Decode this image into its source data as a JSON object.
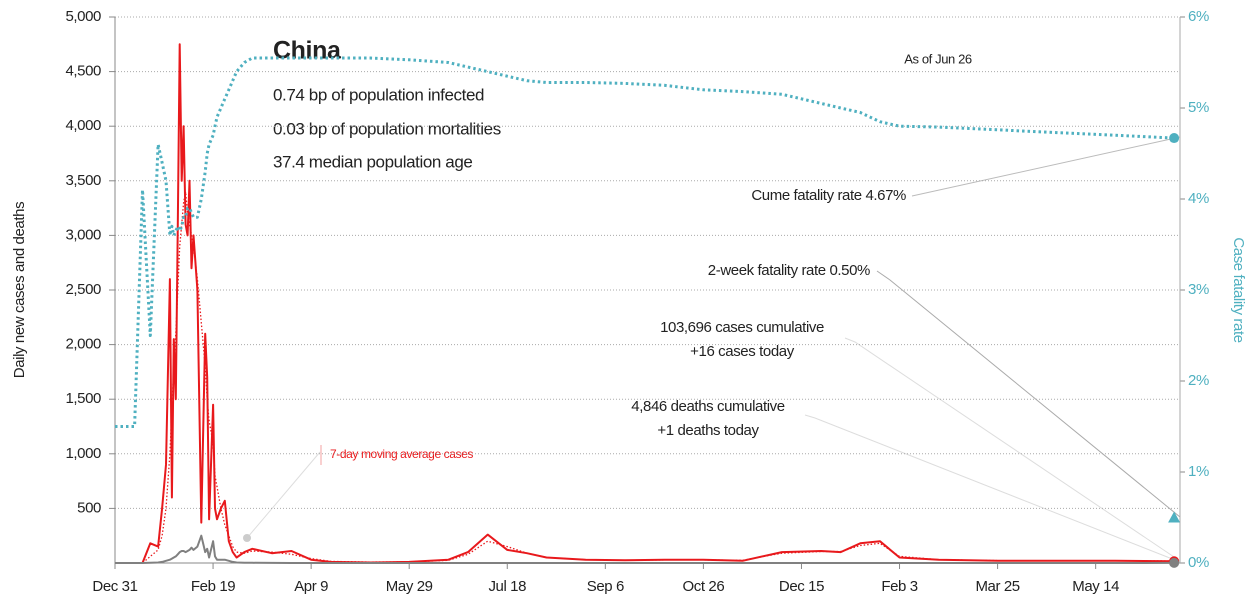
{
  "chart_data": {
    "type": "line",
    "title": "China",
    "subtitle_lines": [
      "0.74 bp of population infected",
      "0.03 bp of population mortalities",
      "37.4 median population age"
    ],
    "note": "As of Jun 26",
    "y_axis_label": "Daily new cases and deaths",
    "y2_axis_label": "Case fatality rate",
    "annotations": [
      "Cume fatality rate 4.67%",
      "2-week fatality rate 0.50%",
      "103,696 cases cumulative",
      "+16 cases today",
      "4,846 deaths cumulative",
      "+1 deaths today",
      "7-day moving average cases"
    ],
    "two_week_fatality_rate": 0.5,
    "x": [
      0,
      10,
      14,
      18,
      22,
      24,
      26,
      28,
      29,
      30,
      31,
      32,
      33,
      34,
      35,
      36,
      37,
      38,
      39,
      40,
      42,
      44,
      46,
      47,
      48,
      50,
      51,
      52,
      54,
      56,
      58,
      60,
      62,
      66,
      70,
      80,
      90,
      100,
      110,
      130,
      150,
      170,
      180,
      190,
      200,
      210,
      220,
      240,
      260,
      280,
      300,
      320,
      340,
      360,
      370,
      380,
      390,
      400,
      420,
      450,
      480,
      510,
      540
    ],
    "xlim": [
      0,
      543
    ],
    "xticks": [
      {
        "value": 0,
        "label": "Dec 31"
      },
      {
        "value": 50,
        "label": "Feb 19"
      },
      {
        "value": 100,
        "label": "Apr 9"
      },
      {
        "value": 150,
        "label": "May 29"
      },
      {
        "value": 200,
        "label": "Jul 18"
      },
      {
        "value": 250,
        "label": "Sep 6"
      },
      {
        "value": 300,
        "label": "Oct 26"
      },
      {
        "value": 350,
        "label": "Dec 15"
      },
      {
        "value": 400,
        "label": "Feb 3"
      },
      {
        "value": 450,
        "label": "Mar 25"
      },
      {
        "value": 500,
        "label": "May 14"
      }
    ],
    "ylim": [
      0,
      5000
    ],
    "yticks": [
      {
        "value": 500,
        "label": "500"
      },
      {
        "value": 1000,
        "label": "1,000"
      },
      {
        "value": 1500,
        "label": "1,500"
      },
      {
        "value": 2000,
        "label": "2,000"
      },
      {
        "value": 2500,
        "label": "2,500"
      },
      {
        "value": 3000,
        "label": "3,000"
      },
      {
        "value": 3500,
        "label": "3,500"
      },
      {
        "value": 4000,
        "label": "4,000"
      },
      {
        "value": 4500,
        "label": "4,500"
      },
      {
        "value": 5000,
        "label": "5,000"
      }
    ],
    "y2lim": [
      0,
      6
    ],
    "y2ticks": [
      {
        "value": 0,
        "label": "0%"
      },
      {
        "value": 1,
        "label": "1%"
      },
      {
        "value": 2,
        "label": "2%"
      },
      {
        "value": 3,
        "label": "3%"
      },
      {
        "value": 4,
        "label": "4%"
      },
      {
        "value": 5,
        "label": "5%"
      },
      {
        "value": 6,
        "label": "6%"
      }
    ],
    "grid": true,
    "series": [
      {
        "color": "#e8191c",
        "style": "solid",
        "values": [
          0,
          0,
          0,
          180,
          150,
          500,
          900,
          2600,
          600,
          2050,
          1500,
          3100,
          4750,
          3500,
          4000,
          3100,
          3000,
          3500,
          2700,
          3000,
          2500,
          370,
          2100,
          1700,
          400,
          1450,
          500,
          400,
          500,
          570,
          200,
          100,
          50,
          100,
          130,
          90,
          110,
          30,
          10,
          5,
          10,
          30,
          100,
          260,
          120,
          90,
          50,
          30,
          25,
          30,
          30,
          20,
          100,
          110,
          100,
          180,
          200,
          50,
          30,
          20,
          20,
          20,
          16
        ]
      },
      {
        "color": "#e8191c",
        "style": "dotted",
        "values": [
          0,
          0,
          0,
          60,
          120,
          250,
          500,
          1000,
          1400,
          1800,
          2100,
          2500,
          2900,
          3100,
          3300,
          3400,
          3200,
          3100,
          3000,
          2900,
          2600,
          2200,
          1800,
          1500,
          1300,
          1100,
          800,
          700,
          500,
          350,
          250,
          150,
          100,
          90,
          110,
          100,
          80,
          40,
          15,
          8,
          10,
          25,
          80,
          200,
          150,
          90,
          50,
          30,
          25,
          28,
          28,
          25,
          90,
          105,
          105,
          160,
          180,
          60,
          30,
          22,
          20,
          20,
          18
        ]
      },
      {
        "color": "#808080",
        "style": "solid",
        "values": [
          0,
          0,
          0,
          3,
          5,
          10,
          20,
          30,
          40,
          50,
          60,
          80,
          100,
          110,
          110,
          100,
          110,
          120,
          140,
          120,
          150,
          250,
          100,
          130,
          50,
          200,
          60,
          30,
          30,
          30,
          20,
          10,
          5,
          3,
          2,
          1,
          0,
          0,
          0,
          0,
          0,
          0,
          0,
          0,
          0,
          0,
          0,
          0,
          0,
          0,
          0,
          0,
          0,
          0,
          0,
          0,
          0,
          0,
          0,
          0,
          0,
          0,
          1
        ]
      },
      {
        "color": "#4fb0c0",
        "style": "dotted",
        "axis": "y2",
        "values": [
          1.5,
          1.5,
          4.1,
          2.5,
          4.6,
          4.4,
          4.2,
          3.6,
          3.7,
          3.6,
          3.65,
          3.7,
          3.65,
          3.7,
          3.8,
          3.8,
          3.9,
          3.9,
          3.85,
          3.8,
          3.8,
          4.0,
          4.3,
          4.5,
          4.6,
          4.7,
          4.8,
          4.9,
          5.0,
          5.1,
          5.2,
          5.3,
          5.4,
          5.5,
          5.55,
          5.55,
          5.55,
          5.55,
          5.55,
          5.55,
          5.53,
          5.5,
          5.45,
          5.4,
          5.35,
          5.3,
          5.28,
          5.28,
          5.27,
          5.25,
          5.2,
          5.18,
          5.15,
          5.05,
          5.0,
          4.95,
          4.85,
          4.8,
          4.79,
          4.76,
          4.73,
          4.7,
          4.67
        ]
      }
    ]
  }
}
